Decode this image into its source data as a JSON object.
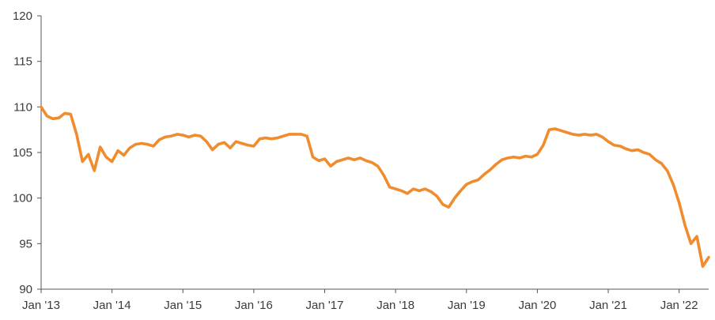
{
  "chart_data": {
    "type": "line",
    "title": "",
    "xlabel": "",
    "ylabel": "",
    "ylim": [
      90,
      120
    ],
    "yticks": [
      90,
      95,
      100,
      105,
      110,
      115,
      120
    ],
    "xlim": [
      "2013-01",
      "2022-06"
    ],
    "xticks": [
      {
        "date": "2013-01",
        "label": "Jan '13"
      },
      {
        "date": "2014-01",
        "label": "Jan '14"
      },
      {
        "date": "2015-01",
        "label": "Jan '15"
      },
      {
        "date": "2016-01",
        "label": "Jan '16"
      },
      {
        "date": "2017-01",
        "label": "Jan '17"
      },
      {
        "date": "2018-01",
        "label": "Jan '18"
      },
      {
        "date": "2019-01",
        "label": "Jan '19"
      },
      {
        "date": "2020-01",
        "label": "Jan '20"
      },
      {
        "date": "2021-01",
        "label": "Jan '21"
      },
      {
        "date": "2022-01",
        "label": "Jan '22"
      }
    ],
    "grid": false,
    "legend": "none",
    "color": "#f08c2e",
    "series": [
      {
        "points": [
          [
            "2013-01",
            110.0
          ],
          [
            "2013-02",
            109.0
          ],
          [
            "2013-03",
            108.7
          ],
          [
            "2013-04",
            108.8
          ],
          [
            "2013-05",
            109.3
          ],
          [
            "2013-06",
            109.2
          ],
          [
            "2013-07",
            107.0
          ],
          [
            "2013-08",
            104.0
          ],
          [
            "2013-09",
            104.8
          ],
          [
            "2013-10",
            103.0
          ],
          [
            "2013-11",
            105.6
          ],
          [
            "2013-12",
            104.5
          ],
          [
            "2014-01",
            104.0
          ],
          [
            "2014-02",
            105.2
          ],
          [
            "2014-03",
            104.7
          ],
          [
            "2014-04",
            105.5
          ],
          [
            "2014-05",
            105.9
          ],
          [
            "2014-06",
            106.0
          ],
          [
            "2014-07",
            105.9
          ],
          [
            "2014-08",
            105.7
          ],
          [
            "2014-09",
            106.4
          ],
          [
            "2014-10",
            106.7
          ],
          [
            "2014-11",
            106.8
          ],
          [
            "2014-12",
            107.0
          ],
          [
            "2015-01",
            106.9
          ],
          [
            "2015-02",
            106.7
          ],
          [
            "2015-03",
            106.9
          ],
          [
            "2015-04",
            106.8
          ],
          [
            "2015-05",
            106.2
          ],
          [
            "2015-06",
            105.3
          ],
          [
            "2015-07",
            105.9
          ],
          [
            "2015-08",
            106.1
          ],
          [
            "2015-09",
            105.5
          ],
          [
            "2015-10",
            106.2
          ],
          [
            "2015-11",
            106.0
          ],
          [
            "2015-12",
            105.8
          ],
          [
            "2016-01",
            105.7
          ],
          [
            "2016-02",
            106.5
          ],
          [
            "2016-03",
            106.6
          ],
          [
            "2016-04",
            106.5
          ],
          [
            "2016-05",
            106.6
          ],
          [
            "2016-06",
            106.8
          ],
          [
            "2016-07",
            107.0
          ],
          [
            "2016-08",
            107.0
          ],
          [
            "2016-09",
            107.0
          ],
          [
            "2016-10",
            106.8
          ],
          [
            "2016-11",
            104.5
          ],
          [
            "2016-12",
            104.1
          ],
          [
            "2017-01",
            104.3
          ],
          [
            "2017-02",
            103.5
          ],
          [
            "2017-03",
            104.0
          ],
          [
            "2017-04",
            104.2
          ],
          [
            "2017-05",
            104.4
          ],
          [
            "2017-06",
            104.2
          ],
          [
            "2017-07",
            104.4
          ],
          [
            "2017-08",
            104.1
          ],
          [
            "2017-09",
            103.9
          ],
          [
            "2017-10",
            103.5
          ],
          [
            "2017-11",
            102.5
          ],
          [
            "2017-12",
            101.2
          ],
          [
            "2018-01",
            101.0
          ],
          [
            "2018-02",
            100.8
          ],
          [
            "2018-03",
            100.5
          ],
          [
            "2018-04",
            101.0
          ],
          [
            "2018-05",
            100.8
          ],
          [
            "2018-06",
            101.0
          ],
          [
            "2018-07",
            100.7
          ],
          [
            "2018-08",
            100.2
          ],
          [
            "2018-09",
            99.3
          ],
          [
            "2018-10",
            99.0
          ],
          [
            "2018-11",
            100.0
          ],
          [
            "2018-12",
            100.8
          ],
          [
            "2019-01",
            101.5
          ],
          [
            "2019-02",
            101.8
          ],
          [
            "2019-03",
            102.0
          ],
          [
            "2019-04",
            102.6
          ],
          [
            "2019-05",
            103.1
          ],
          [
            "2019-06",
            103.7
          ],
          [
            "2019-07",
            104.2
          ],
          [
            "2019-08",
            104.4
          ],
          [
            "2019-09",
            104.5
          ],
          [
            "2019-10",
            104.4
          ],
          [
            "2019-11",
            104.6
          ],
          [
            "2019-12",
            104.5
          ],
          [
            "2020-01",
            104.8
          ],
          [
            "2020-02",
            105.8
          ],
          [
            "2020-03",
            107.5
          ],
          [
            "2020-04",
            107.6
          ],
          [
            "2020-05",
            107.4
          ],
          [
            "2020-06",
            107.2
          ],
          [
            "2020-07",
            107.0
          ],
          [
            "2020-08",
            106.9
          ],
          [
            "2020-09",
            107.0
          ],
          [
            "2020-10",
            106.9
          ],
          [
            "2020-11",
            107.0
          ],
          [
            "2020-12",
            106.7
          ],
          [
            "2021-01",
            106.2
          ],
          [
            "2021-02",
            105.8
          ],
          [
            "2021-03",
            105.7
          ],
          [
            "2021-04",
            105.4
          ],
          [
            "2021-05",
            105.2
          ],
          [
            "2021-06",
            105.3
          ],
          [
            "2021-07",
            105.0
          ],
          [
            "2021-08",
            104.8
          ],
          [
            "2021-09",
            104.2
          ],
          [
            "2021-10",
            103.8
          ],
          [
            "2021-11",
            103.0
          ],
          [
            "2021-12",
            101.5
          ],
          [
            "2022-01",
            99.5
          ],
          [
            "2022-02",
            97.0
          ],
          [
            "2022-03",
            95.0
          ],
          [
            "2022-04",
            95.8
          ],
          [
            "2022-05",
            92.5
          ],
          [
            "2022-06",
            93.5
          ]
        ]
      }
    ]
  }
}
